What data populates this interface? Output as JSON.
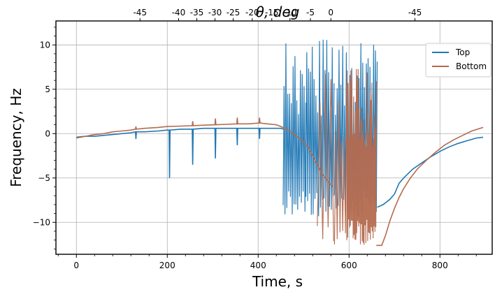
{
  "chart_data": {
    "type": "line",
    "title": "",
    "xlabel": "Time, s",
    "ylabel": "Frequency, Hz",
    "top_axis_label": "θ, deg",
    "xlim": [
      -45,
      915
    ],
    "ylim": [
      -13.6,
      12.7
    ],
    "grid": true,
    "legend_position": "top-right",
    "x_ticks": [
      {
        "value": 0,
        "label": "0"
      },
      {
        "value": 200,
        "label": "200"
      },
      {
        "value": 400,
        "label": "400"
      },
      {
        "value": 600,
        "label": "600"
      },
      {
        "value": 800,
        "label": "800"
      }
    ],
    "y_ticks": [
      {
        "value": 10,
        "label": "10"
      },
      {
        "value": 5,
        "label": "5"
      },
      {
        "value": 0,
        "label": "0"
      },
      {
        "value": -5,
        "label": "−5"
      },
      {
        "value": -10,
        "label": "−10"
      }
    ],
    "top_ticks": [
      {
        "x": 140,
        "label": "-45"
      },
      {
        "x": 225,
        "label": "-40"
      },
      {
        "x": 265,
        "label": "-35"
      },
      {
        "x": 305,
        "label": "-30"
      },
      {
        "x": 345,
        "label": "-25"
      },
      {
        "x": 387,
        "label": "-20"
      },
      {
        "x": 430,
        "label": "-15"
      },
      {
        "x": 470,
        "label": "-10"
      },
      {
        "x": 515,
        "label": "-5"
      },
      {
        "x": 560,
        "label": "0"
      },
      {
        "x": 745,
        "label": "-45"
      }
    ],
    "series": [
      {
        "name": "Top",
        "color": "#1f77b4",
        "points": [
          [
            0,
            -0.4
          ],
          [
            20,
            -0.3
          ],
          [
            40,
            -0.3
          ],
          [
            60,
            -0.2
          ],
          [
            80,
            -0.1
          ],
          [
            100,
            0.0
          ],
          [
            120,
            0.1
          ],
          [
            130,
            0.2
          ],
          [
            131,
            -0.6
          ],
          [
            132,
            0.2
          ],
          [
            150,
            0.2
          ],
          [
            180,
            0.3
          ],
          [
            200,
            0.4
          ],
          [
            204,
            0.4
          ],
          [
            205,
            -5.0
          ],
          [
            206,
            0.4
          ],
          [
            230,
            0.5
          ],
          [
            255,
            0.5
          ],
          [
            256,
            -3.5
          ],
          [
            257,
            0.5
          ],
          [
            280,
            0.6
          ],
          [
            300,
            0.6
          ],
          [
            305,
            0.6
          ],
          [
            306,
            -2.8
          ],
          [
            307,
            0.6
          ],
          [
            330,
            0.6
          ],
          [
            353,
            0.6
          ],
          [
            354,
            -1.3
          ],
          [
            355,
            0.6
          ],
          [
            380,
            0.6
          ],
          [
            400,
            0.6
          ],
          [
            402,
            0.6
          ],
          [
            403,
            -0.6
          ],
          [
            404,
            0.6
          ],
          [
            430,
            0.6
          ],
          [
            450,
            0.6
          ],
          [
            455,
            0.5
          ]
        ],
        "noise": [
          {
            "x_start": 455,
            "x_end": 505,
            "y_low": -9.5,
            "y_high": 10.6,
            "step": 2
          },
          {
            "x_start": 505,
            "x_end": 568,
            "y_low": -9.5,
            "y_high": 10.6,
            "step": 2
          },
          {
            "x_start": 568,
            "x_end": 662,
            "y_low": -9.5,
            "y_high": 10.6,
            "step": 2
          }
        ],
        "tail": [
          [
            662,
            -8.3
          ],
          [
            675,
            -8.0
          ],
          [
            690,
            -7.4
          ],
          [
            700,
            -6.8
          ],
          [
            705,
            -6.2
          ],
          [
            710,
            -5.6
          ],
          [
            720,
            -5.0
          ],
          [
            740,
            -4.0
          ],
          [
            760,
            -3.3
          ],
          [
            780,
            -2.6
          ],
          [
            800,
            -2.0
          ],
          [
            820,
            -1.5
          ],
          [
            840,
            -1.1
          ],
          [
            860,
            -0.8
          ],
          [
            880,
            -0.5
          ],
          [
            895,
            -0.4
          ]
        ]
      },
      {
        "name": "Bottom",
        "color": "#b46a4f",
        "points": [
          [
            0,
            -0.5
          ],
          [
            20,
            -0.3
          ],
          [
            40,
            -0.1
          ],
          [
            60,
            0.0
          ],
          [
            80,
            0.2
          ],
          [
            100,
            0.3
          ],
          [
            120,
            0.4
          ],
          [
            130,
            0.5
          ],
          [
            131,
            0.8
          ],
          [
            132,
            0.5
          ],
          [
            150,
            0.6
          ],
          [
            180,
            0.7
          ],
          [
            200,
            0.8
          ],
          [
            230,
            0.85
          ],
          [
            255,
            0.9
          ],
          [
            256,
            1.4
          ],
          [
            257,
            0.9
          ],
          [
            280,
            0.95
          ],
          [
            305,
            1.0
          ],
          [
            306,
            1.7
          ],
          [
            307,
            1.0
          ],
          [
            330,
            1.05
          ],
          [
            353,
            1.1
          ],
          [
            354,
            1.8
          ],
          [
            355,
            1.1
          ],
          [
            380,
            1.1
          ],
          [
            402,
            1.2
          ],
          [
            403,
            1.8
          ],
          [
            404,
            1.2
          ],
          [
            420,
            1.1
          ],
          [
            440,
            1.0
          ],
          [
            450,
            0.8
          ],
          [
            470,
            0.3
          ],
          [
            490,
            -0.5
          ],
          [
            510,
            -1.5
          ],
          [
            525,
            -3.0
          ],
          [
            540,
            -4.5
          ],
          [
            555,
            -5.5
          ],
          [
            565,
            -6.0
          ]
        ],
        "noise": [
          {
            "x_start": 530,
            "x_end": 568,
            "y_low": -12.6,
            "y_high": 7.3,
            "step": 6
          },
          {
            "x_start": 568,
            "x_end": 595,
            "y_low": -12.6,
            "y_high": 7.3,
            "step": 3
          },
          {
            "x_start": 595,
            "x_end": 660,
            "y_low": -12.6,
            "y_high": 7.3,
            "step": 1
          }
        ],
        "tail": [
          [
            660,
            -12.6
          ],
          [
            672,
            -12.6
          ],
          [
            680,
            -11.5
          ],
          [
            690,
            -9.8
          ],
          [
            700,
            -8.4
          ],
          [
            710,
            -7.2
          ],
          [
            720,
            -6.2
          ],
          [
            735,
            -5.0
          ],
          [
            750,
            -4.0
          ],
          [
            770,
            -3.0
          ],
          [
            790,
            -2.1
          ],
          [
            810,
            -1.3
          ],
          [
            830,
            -0.7
          ],
          [
            850,
            -0.2
          ],
          [
            870,
            0.3
          ],
          [
            895,
            0.7
          ]
        ]
      }
    ]
  }
}
